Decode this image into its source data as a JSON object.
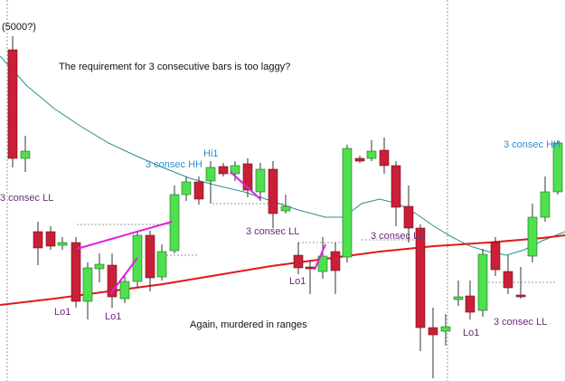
{
  "header": {
    "note": "(5000?)",
    "question": "The requirement for 3 consecutive bars is too laggy?"
  },
  "annotations": {
    "ll_left": "3 consec LL",
    "hi1": "Hi1",
    "hh_mid": "3 consec HH",
    "ll_mid": "3 consec LL",
    "ll_mid2": "3 consec LL",
    "hh_right": "3 consec HH",
    "lo1_a": "Lo1",
    "lo1_b": "Lo1",
    "lo1_c": "Lo1",
    "lo1_d": "Lo1",
    "ll_right": "3 consec LL"
  },
  "footer": {
    "comment": "Again, murdered in ranges"
  }
}
